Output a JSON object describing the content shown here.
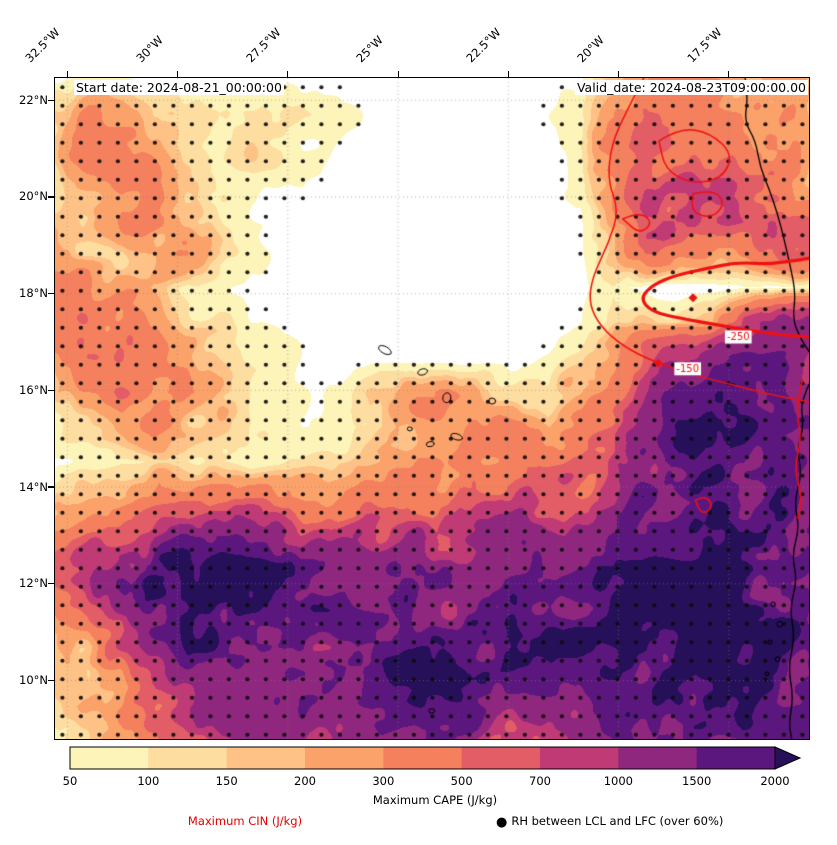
{
  "header": {
    "start_date": "Start date: 2024-08-21_00:00:00",
    "valid_date": "Valid_date: 2024-08-23T09:00:00.00"
  },
  "axes": {
    "x_ticks": [
      {
        "label": "32.5°W",
        "lon": -32.5
      },
      {
        "label": "30°W",
        "lon": -30
      },
      {
        "label": "27.5°W",
        "lon": -27.5
      },
      {
        "label": "25°W",
        "lon": -25
      },
      {
        "label": "22.5°W",
        "lon": -22.5
      },
      {
        "label": "20°W",
        "lon": -20
      },
      {
        "label": "17.5°W",
        "lon": -17.5
      }
    ],
    "y_ticks": [
      {
        "label": "22°N",
        "lat": 22
      },
      {
        "label": "20°N",
        "lat": 20
      },
      {
        "label": "18°N",
        "lat": 18
      },
      {
        "label": "16°N",
        "lat": 16
      },
      {
        "label": "14°N",
        "lat": 14
      },
      {
        "label": "12°N",
        "lat": 12
      },
      {
        "label": "10°N",
        "lat": 10
      }
    ]
  },
  "colorbar": {
    "label": "Maximum CAPE (J/kg)",
    "ticks": [
      "50",
      "100",
      "150",
      "200",
      "300",
      "500",
      "700",
      "1000",
      "1500",
      "2000"
    ],
    "segment_colors": [
      "#fcf4b8",
      "#fddda0",
      "#fec287",
      "#fba26b",
      "#f4805e",
      "#e25d66",
      "#c03a76",
      "#90277f",
      "#5c177e"
    ],
    "arrow_color": "#26105a",
    "under_color": "#ffffff"
  },
  "legend": {
    "cin_label": "Maximum CIN (J/kg)",
    "cin_color": "#e60000",
    "rh_dot": "●",
    "rh_label": "RH between LCL and LFC (over 60%)"
  },
  "chart_data": {
    "type": "heatmap",
    "title": "Maximum CAPE (J/kg)",
    "units": "J/kg",
    "extent": {
      "lon_min": -32.78,
      "lon_max": -15.66,
      "lat_min": 8.77,
      "lat_max": 22.46
    },
    "levels": [
      50,
      100,
      150,
      200,
      300,
      500,
      700,
      1000,
      1500,
      2000
    ],
    "grid_note": "Maximum CAPE (J/kg), rows north-to-south (lat 22.46 to 8.77), cols west-to-east (lon -32.78 to -15.66)",
    "cape_grid": [
      [
        60,
        80,
        60,
        40,
        30,
        25,
        30,
        40,
        30,
        25,
        20,
        15,
        12,
        12,
        15,
        25,
        40,
        150,
        300,
        350,
        300,
        280,
        250,
        200
      ],
      [
        200,
        300,
        220,
        120,
        150,
        90,
        120,
        150,
        90,
        50,
        25,
        15,
        10,
        15,
        25,
        40,
        100,
        300,
        500,
        450,
        400,
        350,
        280,
        220
      ],
      [
        150,
        400,
        350,
        200,
        100,
        60,
        150,
        100,
        60,
        30,
        15,
        10,
        10,
        10,
        20,
        30,
        80,
        350,
        600,
        550,
        500,
        450,
        350,
        250
      ],
      [
        100,
        250,
        450,
        300,
        150,
        80,
        60,
        50,
        40,
        20,
        10,
        8,
        8,
        10,
        15,
        25,
        60,
        300,
        700,
        800,
        600,
        700,
        500,
        300
      ],
      [
        200,
        150,
        300,
        400,
        200,
        100,
        50,
        30,
        20,
        12,
        8,
        6,
        6,
        8,
        12,
        20,
        50,
        250,
        700,
        900,
        600,
        700,
        800,
        400
      ],
      [
        300,
        200,
        150,
        250,
        300,
        150,
        60,
        30,
        15,
        8,
        6,
        5,
        5,
        6,
        10,
        15,
        40,
        150,
        500,
        350,
        300,
        400,
        600,
        500
      ],
      [
        250,
        350,
        250,
        150,
        100,
        80,
        40,
        20,
        10,
        6,
        5,
        5,
        5,
        6,
        8,
        12,
        30,
        100,
        25,
        15,
        20,
        60,
        40,
        60
      ],
      [
        350,
        450,
        350,
        250,
        150,
        100,
        60,
        30,
        15,
        8,
        6,
        6,
        6,
        8,
        10,
        15,
        40,
        120,
        150,
        120,
        200,
        800,
        1300,
        1000
      ],
      [
        300,
        500,
        450,
        350,
        250,
        150,
        100,
        60,
        30,
        15,
        10,
        8,
        10,
        15,
        25,
        60,
        150,
        300,
        700,
        1000,
        1400,
        1600,
        1200,
        900
      ],
      [
        200,
        350,
        500,
        400,
        300,
        200,
        120,
        80,
        50,
        80,
        200,
        300,
        280,
        220,
        160,
        120,
        200,
        400,
        900,
        1500,
        1800,
        1700,
        1400,
        1000
      ],
      [
        100,
        150,
        250,
        300,
        200,
        150,
        100,
        80,
        60,
        80,
        150,
        250,
        300,
        350,
        300,
        250,
        350,
        600,
        1200,
        1800,
        2000,
        1800,
        1500,
        1200
      ],
      [
        40,
        60,
        100,
        150,
        120,
        100,
        80,
        100,
        120,
        150,
        200,
        250,
        350,
        450,
        500,
        400,
        500,
        800,
        1400,
        1900,
        2000,
        1900,
        1600,
        1300
      ],
      [
        150,
        200,
        250,
        300,
        350,
        400,
        350,
        300,
        250,
        300,
        350,
        400,
        500,
        600,
        700,
        600,
        700,
        1000,
        1500,
        1800,
        1900,
        1800,
        1700,
        1400
      ],
      [
        400,
        600,
        800,
        1000,
        1200,
        1400,
        1200,
        1000,
        800,
        700,
        800,
        900,
        900,
        1000,
        1100,
        1000,
        1100,
        1300,
        1600,
        1800,
        1900,
        1900,
        1800,
        1500
      ],
      [
        500,
        800,
        1400,
        2000,
        2400,
        2500,
        2200,
        1800,
        1400,
        1200,
        1300,
        1400,
        1300,
        1400,
        1500,
        1400,
        1500,
        1700,
        1900,
        2100,
        2200,
        2000,
        1900,
        1600
      ],
      [
        300,
        600,
        1200,
        1800,
        2200,
        2400,
        2000,
        1700,
        1500,
        1400,
        1500,
        1600,
        1500,
        1600,
        1700,
        1600,
        1700,
        1900,
        2100,
        2300,
        2200,
        2100,
        1900,
        1700
      ],
      [
        150,
        300,
        800,
        1400,
        1800,
        2000,
        1800,
        1600,
        1500,
        1600,
        1700,
        1800,
        1700,
        1800,
        1900,
        1800,
        1900,
        2000,
        2200,
        2400,
        2300,
        2100,
        2000,
        1800
      ],
      [
        200,
        150,
        400,
        900,
        1300,
        1600,
        1500,
        1400,
        1300,
        1500,
        1700,
        1900,
        1800,
        1700,
        1600,
        1500,
        1700,
        1900,
        2100,
        2200,
        2100,
        2000,
        1900,
        1700
      ],
      [
        100,
        200,
        300,
        600,
        900,
        1200,
        1300,
        1200,
        1100,
        1300,
        1500,
        1700,
        1600,
        1400,
        1200,
        1100,
        1300,
        1500,
        1800,
        1900,
        1800,
        1700,
        1600,
        1500
      ],
      [
        80,
        120,
        200,
        400,
        700,
        900,
        1100,
        1000,
        900,
        1100,
        1300,
        1500,
        1400,
        1200,
        1000,
        900,
        1100,
        1300,
        1600,
        1700,
        1600,
        1500,
        1400,
        1300
      ]
    ],
    "stipple": {
      "meaning": "RH between LCL and LFC (over 60%)",
      "threshold": 35,
      "spacing": 18.5,
      "radius": 2.1
    },
    "cin_contours": {
      "color": "#ee1111",
      "levels": [
        -150,
        -250
      ],
      "thin_width": 1.5,
      "thick_width": 3.2,
      "thin": [
        [
          [
            0.78,
            0.0
          ],
          [
            0.757,
            0.05
          ],
          [
            0.737,
            0.1
          ],
          [
            0.732,
            0.155
          ],
          [
            0.747,
            0.2
          ],
          [
            0.733,
            0.25
          ],
          [
            0.712,
            0.3
          ],
          [
            0.707,
            0.34
          ],
          [
            0.722,
            0.375
          ],
          [
            0.752,
            0.405
          ],
          [
            0.792,
            0.428
          ],
          [
            0.842,
            0.447
          ],
          [
            0.892,
            0.462
          ],
          [
            0.942,
            0.477
          ],
          [
            1.0,
            0.49
          ]
        ],
        [
          [
            0.8,
            0.095
          ],
          [
            0.828,
            0.075
          ],
          [
            0.868,
            0.083
          ],
          [
            0.898,
            0.115
          ],
          [
            0.884,
            0.152
          ],
          [
            0.842,
            0.16
          ],
          [
            0.808,
            0.138
          ],
          [
            0.8,
            0.095
          ]
        ],
        [
          [
            0.845,
            0.175
          ],
          [
            0.872,
            0.168
          ],
          [
            0.888,
            0.19
          ],
          [
            0.87,
            0.212
          ],
          [
            0.843,
            0.203
          ],
          [
            0.845,
            0.175
          ]
        ],
        [
          [
            0.752,
            0.213
          ],
          [
            0.774,
            0.202
          ],
          [
            0.792,
            0.218
          ],
          [
            0.775,
            0.236
          ],
          [
            0.752,
            0.213
          ]
        ],
        [
          [
            0.99,
            0.455
          ],
          [
            0.981,
            0.5
          ],
          [
            0.989,
            0.545
          ],
          [
            0.979,
            0.59
          ],
          [
            0.99,
            0.635
          ],
          [
            0.984,
            0.665
          ]
        ],
        [
          [
            0.848,
            0.638
          ],
          [
            0.862,
            0.63
          ],
          [
            0.872,
            0.648
          ],
          [
            0.857,
            0.66
          ],
          [
            0.848,
            0.638
          ]
        ]
      ],
      "thick": [
        [
          [
            1.0,
            0.272
          ],
          [
            0.952,
            0.282
          ],
          [
            0.905,
            0.278
          ],
          [
            0.862,
            0.288
          ],
          [
            0.822,
            0.298
          ],
          [
            0.792,
            0.312
          ],
          [
            0.775,
            0.333
          ],
          [
            0.79,
            0.353
          ],
          [
            0.828,
            0.363
          ],
          [
            0.878,
            0.373
          ],
          [
            0.928,
            0.383
          ],
          [
            0.972,
            0.389
          ],
          [
            1.0,
            0.391
          ]
        ]
      ],
      "markers": [
        {
          "x": 0.845,
          "y": 0.332
        },
        {
          "x": 0.799,
          "y": 0.431
        }
      ],
      "labels": [
        {
          "text": "-250",
          "x": 0.905,
          "y": 0.392
        },
        {
          "text": "-150",
          "x": 0.838,
          "y": 0.44
        }
      ]
    },
    "coastline": [
      [
        [
          0.914,
          0.0
        ],
        [
          0.918,
          0.03
        ],
        [
          0.913,
          0.065
        ],
        [
          0.928,
          0.095
        ],
        [
          0.934,
          0.135
        ],
        [
          0.946,
          0.168
        ],
        [
          0.957,
          0.205
        ],
        [
          0.966,
          0.245
        ],
        [
          0.974,
          0.285
        ],
        [
          0.981,
          0.325
        ],
        [
          0.977,
          0.365
        ],
        [
          0.988,
          0.395
        ],
        [
          1.0,
          0.415
        ]
      ],
      [
        [
          1.0,
          0.46
        ],
        [
          0.987,
          0.49
        ],
        [
          0.992,
          0.525
        ],
        [
          0.983,
          0.56
        ],
        [
          0.989,
          0.6
        ],
        [
          0.979,
          0.64
        ],
        [
          0.986,
          0.68
        ],
        [
          0.976,
          0.72
        ],
        [
          0.983,
          0.76
        ],
        [
          0.973,
          0.8
        ],
        [
          0.98,
          0.845
        ],
        [
          0.971,
          0.89
        ],
        [
          0.978,
          0.935
        ],
        [
          0.972,
          0.975
        ],
        [
          0.976,
          1.0
        ]
      ]
    ],
    "coast_islets": [
      {
        "x": 0.951,
        "y": 0.795,
        "r": 2.2
      },
      {
        "x": 0.96,
        "y": 0.825,
        "r": 2.8
      },
      {
        "x": 0.947,
        "y": 0.852,
        "r": 2.0
      },
      {
        "x": 0.957,
        "y": 0.878,
        "r": 2.4
      },
      {
        "x": 0.943,
        "y": 0.9,
        "r": 1.8
      }
    ],
    "islands": [
      {
        "x": 0.437,
        "y": 0.411,
        "rx": 7,
        "ry": 3.5,
        "rot": 0.5
      },
      {
        "x": 0.487,
        "y": 0.444,
        "rx": 5,
        "ry": 3,
        "rot": -0.3
      },
      {
        "x": 0.519,
        "y": 0.483,
        "rx": 4,
        "ry": 5,
        "rot": 0.2
      },
      {
        "x": 0.579,
        "y": 0.488,
        "rx": 3.5,
        "ry": 3,
        "rot": 0
      },
      {
        "x": 0.532,
        "y": 0.542,
        "rx": 6,
        "ry": 3,
        "rot": 0.3
      },
      {
        "x": 0.497,
        "y": 0.553,
        "rx": 4,
        "ry": 2.5,
        "rot": -0.2
      },
      {
        "x": 0.47,
        "y": 0.53,
        "rx": 2.5,
        "ry": 2,
        "rot": 0
      },
      {
        "x": 0.499,
        "y": 0.956,
        "rx": 3,
        "ry": 2.2,
        "rot": 0
      }
    ]
  }
}
